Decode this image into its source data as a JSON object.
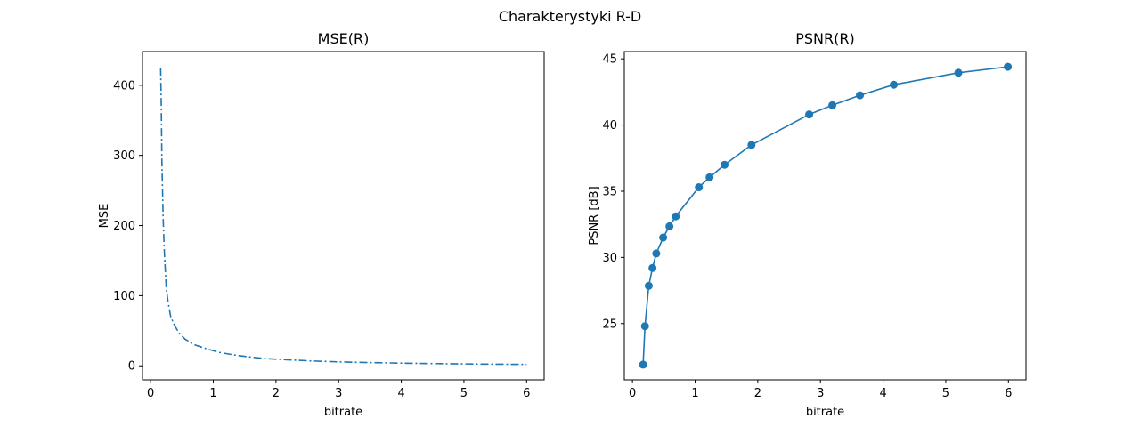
{
  "figure": {
    "suptitle": "Charakterystyki R-D"
  },
  "chart_data": [
    {
      "type": "line",
      "title": "MSE(R)",
      "xlabel": "bitrate",
      "ylabel": "MSE",
      "xlim": [
        -0.13,
        6.28
      ],
      "ylim": [
        -20,
        448
      ],
      "xticks": [
        0,
        1,
        2,
        3,
        4,
        5,
        6
      ],
      "yticks": [
        0,
        100,
        200,
        300,
        400
      ],
      "line_style": "dashdot",
      "marker": "none",
      "color": "#1f77b4",
      "grid": false,
      "series": [
        {
          "x": [
            0.16,
            0.17,
            0.18,
            0.2,
            0.22,
            0.25,
            0.28,
            0.32,
            0.38,
            0.45,
            0.55,
            0.7,
            0.9,
            1.1,
            1.4,
            1.8,
            2.2,
            2.6,
            3.0,
            3.5,
            4.0,
            4.5,
            5.0,
            5.5,
            6.0
          ],
          "y": [
            425,
            370,
            290,
            210,
            160,
            110,
            90,
            70,
            58,
            47,
            38,
            30,
            24,
            19,
            14.5,
            10.5,
            8.5,
            6.8,
            5.6,
            4.6,
            3.8,
            3.2,
            2.7,
            2.3,
            2.0
          ]
        }
      ]
    },
    {
      "type": "line",
      "title": "PSNR(R)",
      "xlabel": "bitrate",
      "ylabel": "PSNR [dB]",
      "xlim": [
        -0.13,
        6.28
      ],
      "ylim": [
        20.75,
        45.55
      ],
      "xticks": [
        0,
        1,
        2,
        3,
        4,
        5,
        6
      ],
      "yticks": [
        25,
        30,
        35,
        40,
        45
      ],
      "line_style": "solid",
      "marker": "circle",
      "color": "#1f77b4",
      "grid": false,
      "series": [
        {
          "x": [
            0.17,
            0.2,
            0.26,
            0.32,
            0.38,
            0.49,
            0.59,
            0.69,
            1.06,
            1.23,
            1.47,
            1.9,
            2.82,
            3.19,
            3.63,
            4.17,
            5.2,
            5.99
          ],
          "y": [
            21.9,
            24.8,
            27.85,
            29.2,
            30.3,
            31.5,
            32.35,
            33.1,
            35.3,
            36.05,
            37.0,
            38.5,
            40.8,
            41.5,
            42.25,
            43.05,
            43.95,
            44.4
          ]
        }
      ]
    }
  ]
}
